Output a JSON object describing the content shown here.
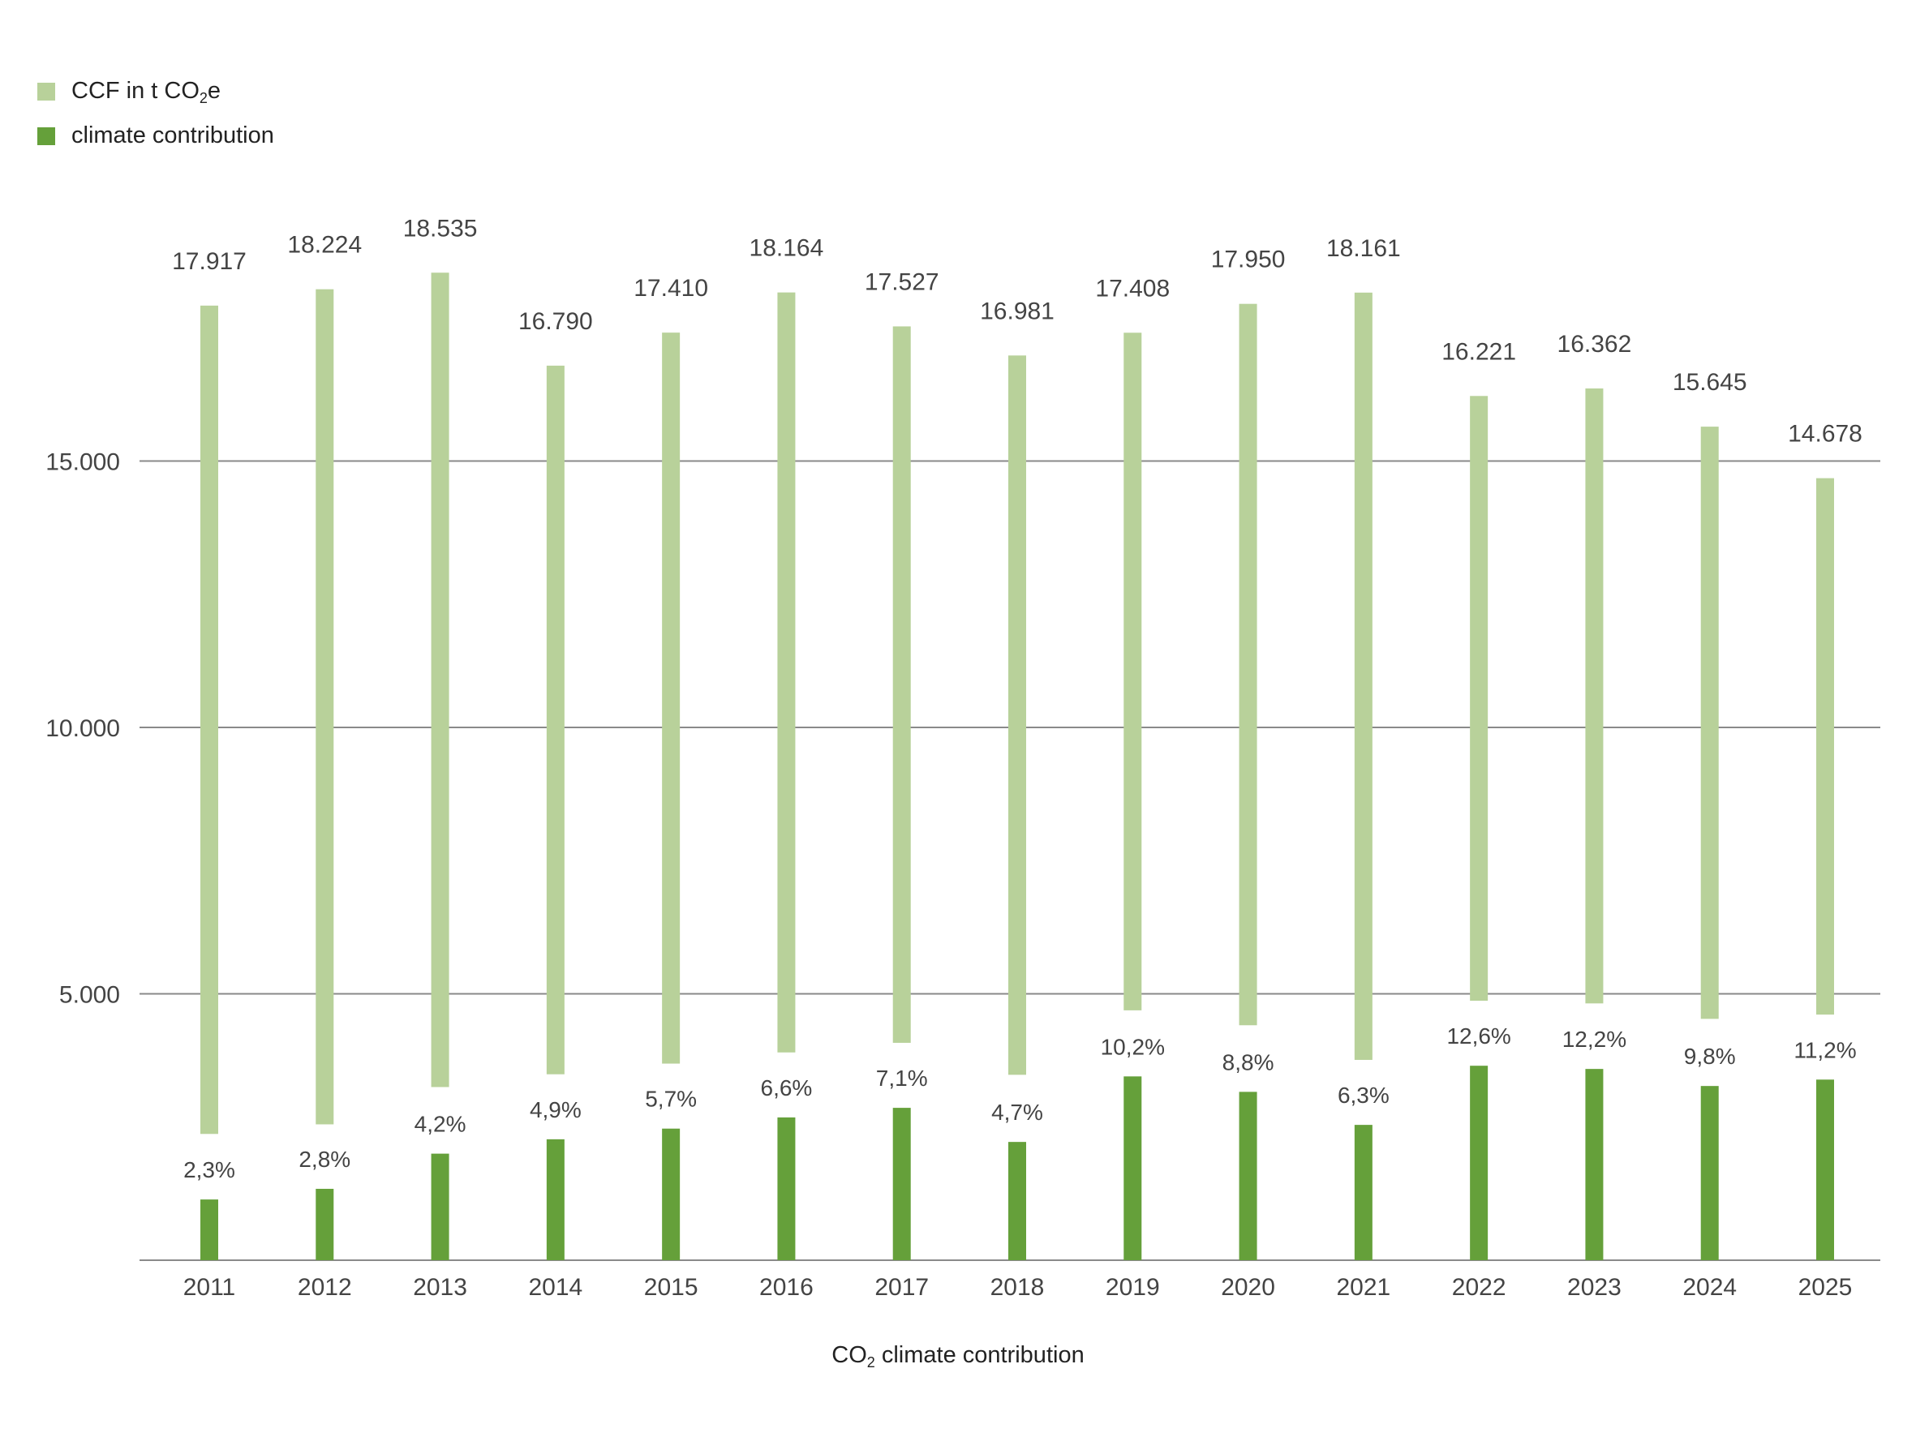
{
  "legend": [
    {
      "label_main": "CCF in t CO",
      "label_sub": "2",
      "label_tail": "e",
      "color": "#b8d19a"
    },
    {
      "label": "climate contribution",
      "color": "#65a03a"
    }
  ],
  "x_title": {
    "main": "CO",
    "sub": "2",
    "tail": " climate contribution"
  },
  "chart_data": {
    "type": "bar",
    "categories": [
      "2011",
      "2012",
      "2013",
      "2014",
      "2015",
      "2016",
      "2017",
      "2018",
      "2019",
      "2020",
      "2021",
      "2022",
      "2023",
      "2024",
      "2025"
    ],
    "ylim": [
      0,
      20800
    ],
    "yticks": [
      {
        "value": 5000,
        "label": "5.000"
      },
      {
        "value": 10000,
        "label": "10.000"
      },
      {
        "value": 15000,
        "label": "15.000"
      }
    ],
    "series": [
      {
        "name": "CCF in t CO2e",
        "color": "#b8d19a",
        "top": [
          17917,
          18224,
          18535,
          16790,
          17410,
          18164,
          17527,
          16981,
          17408,
          17950,
          18161,
          16221,
          16362,
          15645,
          14678
        ],
        "bottom": [
          2370,
          2550,
          3250,
          3490,
          3690,
          3900,
          4080,
          3480,
          4690,
          4410,
          3760,
          4870,
          4820,
          4530,
          4610
        ],
        "labels": [
          "17.917",
          "18.224",
          "18.535",
          "16.790",
          "17.410",
          "18.164",
          "17.527",
          "16.981",
          "17.408",
          "17.950",
          "18.161",
          "16.221",
          "16.362",
          "15.645",
          "14.678"
        ]
      },
      {
        "name": "climate contribution",
        "color": "#65a03a",
        "values": [
          1140,
          1340,
          2000,
          2270,
          2470,
          2680,
          2860,
          2220,
          3450,
          3160,
          2540,
          3650,
          3590,
          3270,
          3390
        ],
        "labels": [
          "2,3%",
          "2,8%",
          "4,2%",
          "4,9%",
          "5,7%",
          "6,6%",
          "7,1%",
          "4,7%",
          "10,2%",
          "8,8%",
          "6,3%",
          "12,6%",
          "12,2%",
          "9,8%",
          "11,2%"
        ]
      }
    ]
  }
}
